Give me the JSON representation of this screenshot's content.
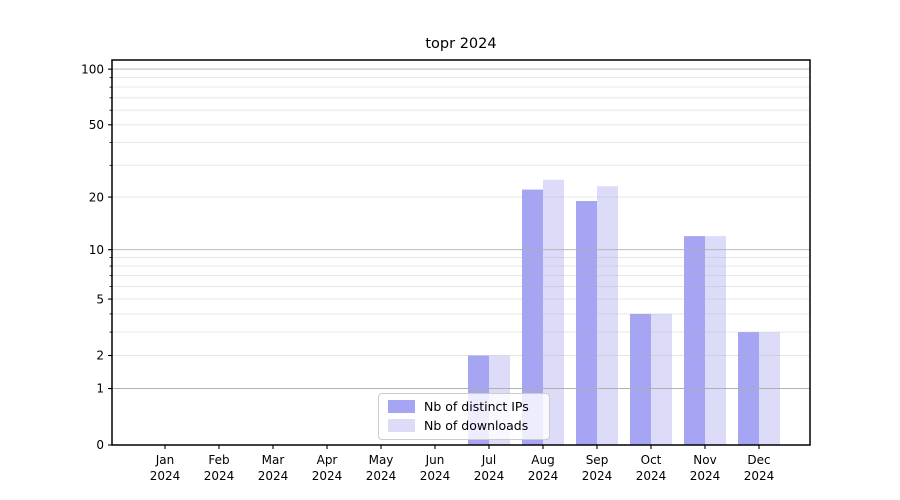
{
  "title": "topr 2024",
  "chart_data": {
    "type": "bar",
    "title": "topr 2024",
    "categories": [
      "Jan",
      "Feb",
      "Mar",
      "Apr",
      "May",
      "Jun",
      "Jul",
      "Aug",
      "Sep",
      "Oct",
      "Nov",
      "Dec"
    ],
    "year_label": "2024",
    "series": [
      {
        "name": "Nb of distinct IPs",
        "color": "#a5a5f3",
        "values": [
          0,
          0,
          0,
          0,
          0,
          0,
          2,
          22,
          19,
          4,
          12,
          3
        ]
      },
      {
        "name": "Nb of downloads",
        "color": "#dcdcf8",
        "values": [
          0,
          0,
          0,
          0,
          0,
          0,
          2,
          25,
          23,
          4,
          12,
          3
        ]
      }
    ],
    "yscale": "log1p",
    "ylim": [
      0,
      112
    ],
    "y_ticks_labeled": [
      0,
      1,
      2,
      5,
      10,
      20,
      50,
      100
    ],
    "y_ticks_major_grid": [
      1,
      10,
      100
    ],
    "y_ticks_minor": [
      3,
      4,
      6,
      7,
      8,
      9,
      30,
      40,
      60,
      70,
      80,
      90
    ],
    "xlabel": "",
    "ylabel": "",
    "grid": "horizontal, drawn over bars",
    "legend_position": "bottom-center-inside"
  }
}
